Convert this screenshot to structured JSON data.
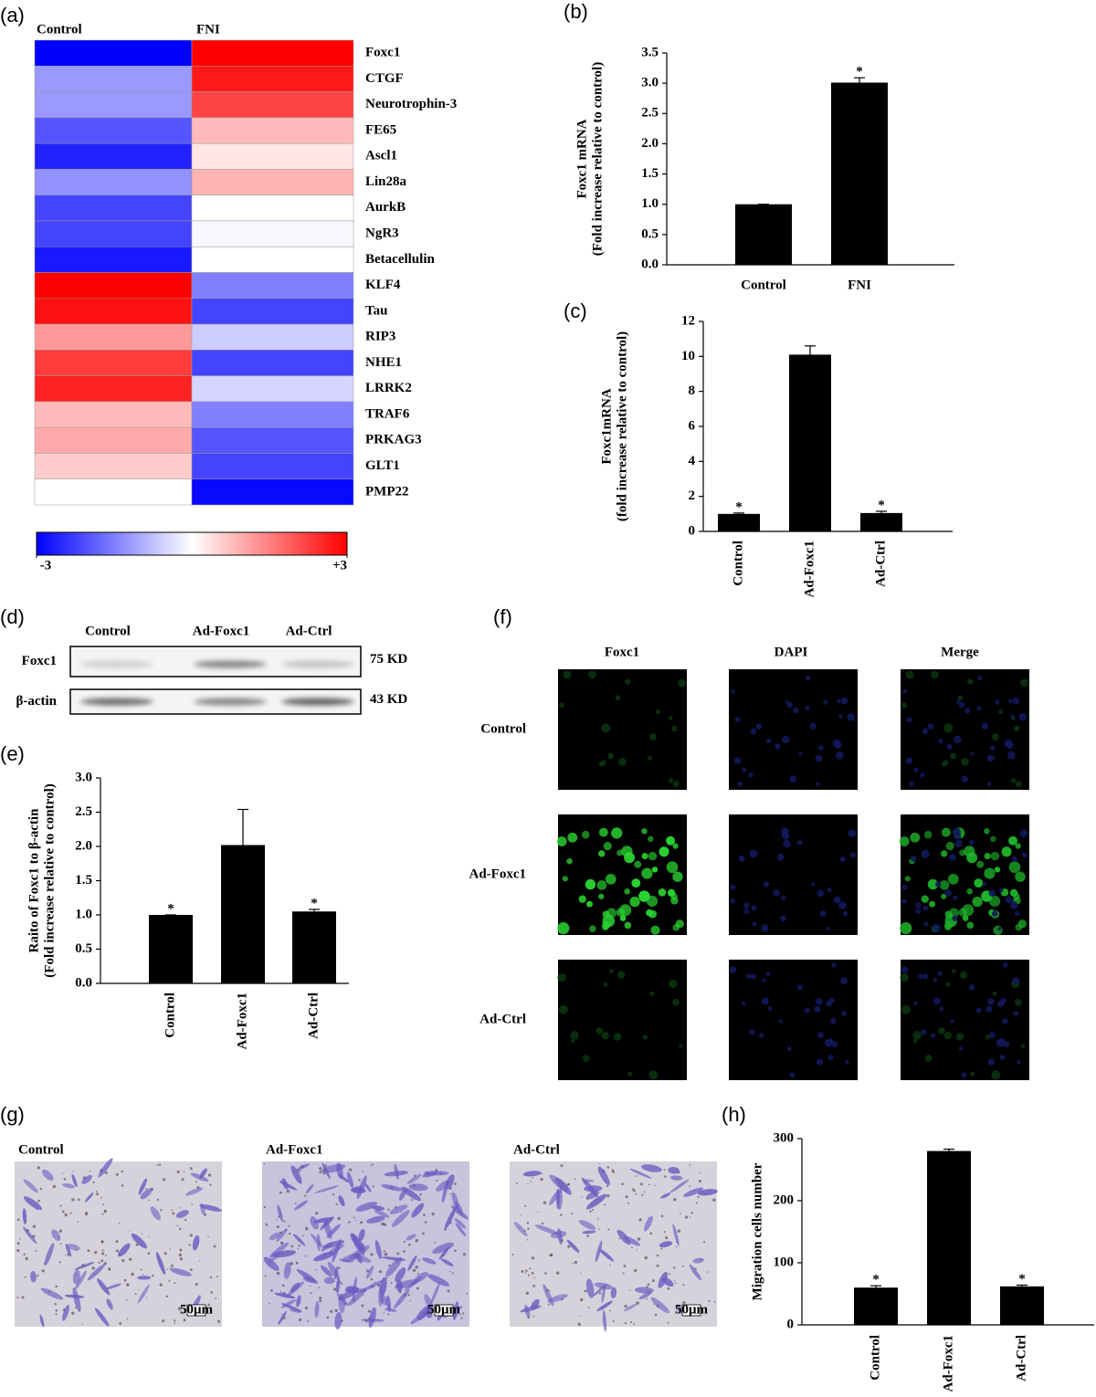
{
  "chart_data": [
    {
      "type": "heatmap",
      "panel": "(a)",
      "columns": [
        "Control",
        "FNI"
      ],
      "rows": [
        "Foxc1",
        "CTGF",
        "Neurotrophin-3",
        "FE65",
        "Ascl1",
        "Lin28a",
        "AurkB",
        "NgR3",
        "Betacellulin",
        "KLF4",
        "Tau",
        "RIP3",
        "NHE1",
        "LRRK2",
        "TRAF6",
        "PRKAG3",
        "GLT1",
        "PMP22"
      ],
      "values": [
        [
          -3,
          3
        ],
        [
          -1.2,
          2.7
        ],
        [
          -1.2,
          2.2
        ],
        [
          -2,
          0.8
        ],
        [
          -2.6,
          0.3
        ],
        [
          -1.3,
          0.9
        ],
        [
          -2.2,
          0
        ],
        [
          -2.2,
          -0.1
        ],
        [
          -2.7,
          0
        ],
        [
          3,
          -1.5
        ],
        [
          2.8,
          -2.2
        ],
        [
          1.2,
          -0.6
        ],
        [
          2.3,
          -2.2
        ],
        [
          2.6,
          -0.5
        ],
        [
          0.8,
          -1.5
        ],
        [
          1,
          -2
        ],
        [
          0.6,
          -2.2
        ],
        [
          0,
          -2.9
        ]
      ],
      "colorbar": {
        "lim": [
          -3,
          3
        ],
        "ticks": [
          -3,
          {
            "value": 3,
            "label": "+3"
          }
        ],
        "colors": [
          "#0000ff",
          "#ffffff",
          "#ff0000"
        ]
      }
    },
    {
      "type": "bar",
      "panel": "(b)",
      "y_label": [
        "Foxc1 mRNA",
        "(Fold increase relative to control)"
      ],
      "categories": [
        "Control",
        "FNI"
      ],
      "values": [
        1.0,
        3.01
      ],
      "errors": [
        0,
        0.08
      ],
      "stars": [
        null,
        "*"
      ],
      "ylim": [
        0,
        3.5
      ],
      "yticks": [
        {
          "value": 0,
          "label": "0.0"
        },
        0.5,
        {
          "value": 1,
          "label": "1.0"
        },
        1.5,
        {
          "value": 2,
          "label": "2.0"
        },
        2.5,
        {
          "value": 3,
          "label": "3.0"
        },
        3.5
      ],
      "color": "#000000"
    },
    {
      "type": "bar",
      "panel": "(c)",
      "y_label": [
        "Foxc1mRNA",
        "(fold increase relative to control)"
      ],
      "categories": [
        "Control",
        "Ad-Foxc1",
        "Ad-Ctrl"
      ],
      "values": [
        1.0,
        10.1,
        1.05
      ],
      "errors": [
        0.05,
        0.5,
        0.1
      ],
      "stars": [
        "*",
        null,
        "*"
      ],
      "ylim": [
        0,
        12
      ],
      "yticks": [
        0,
        2,
        4,
        6,
        8,
        10,
        12
      ],
      "color": "#000000"
    },
    {
      "type": "bar",
      "panel": "(e)",
      "y_label": [
        "Raito of Foxc1 to β-actin",
        "(Fold increase relative to control)"
      ],
      "categories": [
        "Control",
        "Ad-Foxc1",
        "Ad-Ctrl"
      ],
      "values": [
        1.0,
        2.02,
        1.05
      ],
      "errors": [
        0,
        0.52,
        0.03
      ],
      "stars": [
        "*",
        null,
        "*"
      ],
      "ylim": [
        0,
        3
      ],
      "yticks": [
        {
          "value": 0,
          "label": "0.0"
        },
        0.5,
        {
          "value": 1,
          "label": "1.0"
        },
        1.5,
        {
          "value": 2,
          "label": "2.0"
        },
        2.5,
        {
          "value": 3,
          "label": "3.0"
        }
      ],
      "color": "#000000"
    },
    {
      "type": "bar",
      "panel": "(h)",
      "y_label": [
        "Migration cells number"
      ],
      "categories": [
        "Control",
        "Ad-Foxc1",
        "Ad-Ctrl"
      ],
      "values": [
        60,
        280,
        62
      ],
      "errors": [
        3,
        3,
        2
      ],
      "stars": [
        "*",
        null,
        "*"
      ],
      "ylim": [
        0,
        300
      ],
      "yticks": [
        0,
        100,
        200,
        300
      ],
      "color": "#000000"
    }
  ],
  "blot": {
    "panel": "(d)",
    "lanes": [
      "Control",
      "Ad-Foxc1",
      "Ad-Ctrl"
    ],
    "rows": [
      {
        "label": "Foxc1",
        "size": "75 KD"
      },
      {
        "label": "β-actin",
        "size": "43 KD"
      }
    ]
  },
  "fluorescence": {
    "panel": "(f)",
    "columns": [
      {
        "label": "Foxc1",
        "color": "#22cc22"
      },
      {
        "label": "DAPI",
        "color": "#3333cc"
      },
      {
        "label": "Merge",
        "color": "#1a7a4a"
      }
    ],
    "rows": [
      "Control",
      "Ad-Foxc1",
      "Ad-Ctrl"
    ]
  },
  "migration_images": {
    "panel": "(g)",
    "labels": [
      "Control",
      "Ad-Foxc1",
      "Ad-Ctrl"
    ],
    "scale_bar": "50μm"
  }
}
